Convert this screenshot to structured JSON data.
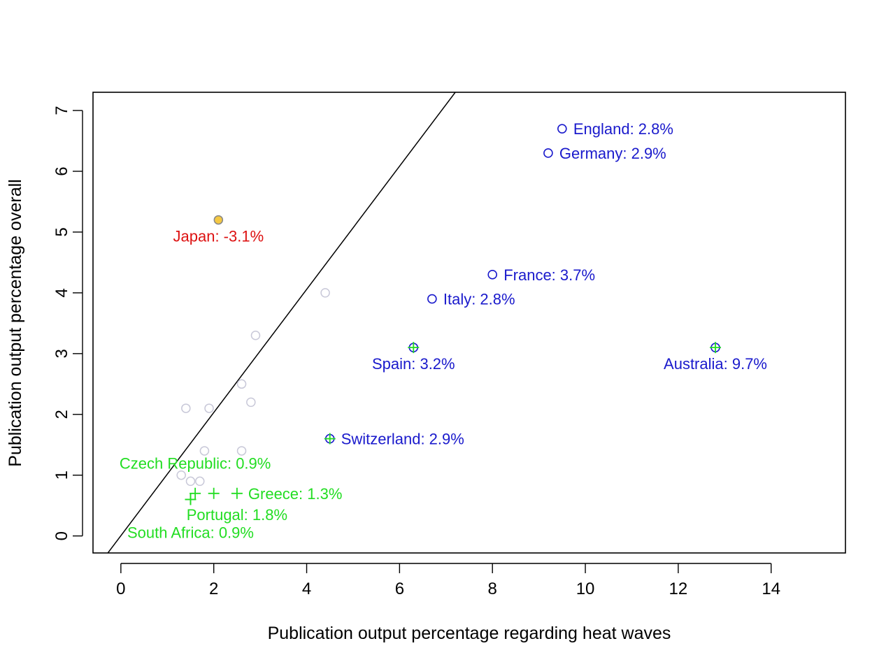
{
  "chart_data": {
    "type": "scatter",
    "title": "",
    "xlabel": "Publication output percentage regarding heat waves",
    "ylabel": "Publication output percentage overall",
    "xlim": [
      -0.6,
      15.6
    ],
    "ylim": [
      -0.28,
      7.3
    ],
    "x_ticks": [
      0,
      2,
      4,
      6,
      8,
      10,
      12,
      14
    ],
    "y_ticks": [
      0,
      1,
      2,
      3,
      4,
      5,
      6,
      7
    ],
    "grid": false,
    "reference_line": {
      "x": [
        -0.3,
        7.2
      ],
      "y": [
        -0.3,
        7.3
      ],
      "color": "#000000"
    },
    "colors": {
      "blue": "#1a1acc",
      "red": "#dd1111",
      "green": "#22dd22",
      "grey": "#c8c8d8",
      "orange": "#f5c842"
    },
    "grey_points": [
      {
        "x": 4.4,
        "y": 4.0
      },
      {
        "x": 2.9,
        "y": 3.3
      },
      {
        "x": 2.6,
        "y": 2.5
      },
      {
        "x": 1.4,
        "y": 2.1
      },
      {
        "x": 1.9,
        "y": 2.1
      },
      {
        "x": 2.8,
        "y": 2.2
      },
      {
        "x": 1.8,
        "y": 1.4
      },
      {
        "x": 2.6,
        "y": 1.4
      },
      {
        "x": 1.3,
        "y": 1.0
      },
      {
        "x": 1.5,
        "y": 0.9
      },
      {
        "x": 1.7,
        "y": 0.9
      }
    ],
    "highlight_points": [
      {
        "x": 2.1,
        "y": 5.2,
        "fill": "#f5c842",
        "stroke": "#888888"
      }
    ],
    "blue_points": [
      {
        "x": 9.5,
        "y": 6.7
      },
      {
        "x": 9.2,
        "y": 6.3
      },
      {
        "x": 8.0,
        "y": 4.3
      },
      {
        "x": 6.7,
        "y": 3.9
      },
      {
        "x": 6.3,
        "y": 3.1
      },
      {
        "x": 12.8,
        "y": 3.1
      },
      {
        "x": 4.5,
        "y": 1.6
      }
    ],
    "green_plus_points": [
      {
        "x": 6.3,
        "y": 3.1
      },
      {
        "x": 12.8,
        "y": 3.1
      },
      {
        "x": 4.5,
        "y": 1.6
      },
      {
        "x": 1.6,
        "y": 0.7
      },
      {
        "x": 2.0,
        "y": 0.7
      },
      {
        "x": 2.5,
        "y": 0.7
      },
      {
        "x": 1.5,
        "y": 0.6
      },
      {
        "x": 1.5,
        "y": 0.6
      }
    ],
    "labels": [
      {
        "text": "England: 2.8%",
        "x": 9.5,
        "y": 6.7,
        "color": "#1a1acc",
        "anchor": "right"
      },
      {
        "text": "Germany: 2.9%",
        "x": 9.2,
        "y": 6.3,
        "color": "#1a1acc",
        "anchor": "right"
      },
      {
        "text": "France: 3.7%",
        "x": 8.0,
        "y": 4.3,
        "color": "#1a1acc",
        "anchor": "right"
      },
      {
        "text": "Italy: 2.8%",
        "x": 6.7,
        "y": 3.9,
        "color": "#1a1acc",
        "anchor": "right"
      },
      {
        "text": "Spain: 3.2%",
        "x": 6.3,
        "y": 3.1,
        "color": "#1a1acc",
        "anchor": "below"
      },
      {
        "text": "Australia: 9.7%",
        "x": 12.8,
        "y": 3.1,
        "color": "#1a1acc",
        "anchor": "below"
      },
      {
        "text": "Switzerland: 2.9%",
        "x": 4.5,
        "y": 1.6,
        "color": "#1a1acc",
        "anchor": "right"
      },
      {
        "text": "Japan: -3.1%",
        "x": 2.1,
        "y": 5.2,
        "color": "#dd1111",
        "anchor": "below"
      },
      {
        "text": "Czech Republic: 0.9%",
        "x": 1.6,
        "y": 1.2,
        "color": "#22dd22",
        "anchor": "center"
      },
      {
        "text": "Greece: 1.3%",
        "x": 2.5,
        "y": 0.7,
        "color": "#22dd22",
        "anchor": "right"
      },
      {
        "text": "Portugal: 1.8%",
        "x": 2.5,
        "y": 0.35,
        "color": "#22dd22",
        "anchor": "center"
      },
      {
        "text": "South Africa: 0.9%",
        "x": 1.5,
        "y": 0.06,
        "color": "#22dd22",
        "anchor": "center"
      }
    ]
  }
}
